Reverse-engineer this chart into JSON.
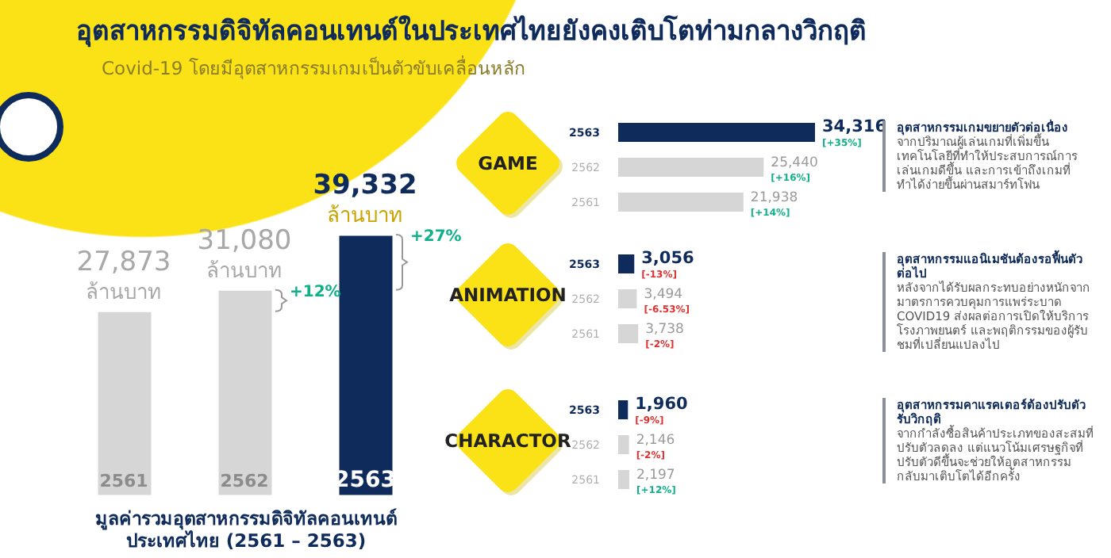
{
  "chart_data": [
    {
      "type": "bar",
      "title": "อุตสาหกรรมดิจิทัลคอนเทนต์ในประเทศไทยยังคงเติบโตท่ามกลางวิกฤติ",
      "subtitle": "Covid-19 โดยมีอุตสาหกรรมเกมเป็นตัวขับเคลื่อนหลัก",
      "xlabel": "มูลค่ารวมอุตสาหกรรมดิจิทัลคอนเทนต์ประเทศไทย (2561 – 2563)",
      "categories": [
        "2561",
        "2562",
        "2563"
      ],
      "tick_labels": "x",
      "series": [
        {
          "colors": [
            "#d6d6d6",
            "#d6d6d6",
            "#0f2b5b"
          ],
          "values": [
            27873,
            31080,
            39332
          ],
          "value_labels": [
            "27,873 ล้านบาท",
            "31,080 ล้านบาท",
            "39,332 ล้านบาท"
          ]
        }
      ],
      "annotations": [
        {
          "text": "+12%",
          "x": "2562",
          "y": 31080
        },
        {
          "text": "+27%",
          "x": "2563",
          "y": 39332
        }
      ]
    },
    {
      "type": "bar",
      "title": "GAME",
      "orientation": "horizontal",
      "categories": [
        "2563",
        "2562",
        "2561"
      ],
      "tick_labels": "y",
      "series": [
        {
          "colors": [
            "#0f2b5b",
            "#d6d6d6",
            "#d6d6d6"
          ],
          "values": [
            34316,
            25440,
            21938
          ],
          "value_labels": [
            "34,316",
            "25,440",
            "21,938"
          ]
        }
      ],
      "annotations": [
        "อุตสาหกรรมเกมขยายตัวต่อเนื่อง",
        "จากปริมาณผู้เล่นเกมที่เพิ่มขึ้น เทคโนโลยีที่ทำให้ประสบการณ์การเล่นเกมดีขึ้น และการเข้าถึงเกมที่ทำได้ง่ายขึ้นผ่านสมาร์ทโฟน",
        {
          "text": "[+35%]",
          "x": 34316,
          "y": "2563"
        },
        {
          "text": "[+16%]",
          "x": 25440,
          "y": "2562"
        },
        {
          "text": "[+14%]",
          "x": 21938,
          "y": "2561"
        }
      ]
    },
    {
      "type": "bar",
      "title": "ANIMATION",
      "orientation": "horizontal",
      "categories": [
        "2563",
        "2562",
        "2561"
      ],
      "tick_labels": "y",
      "series": [
        {
          "colors": [
            "#0f2b5b",
            "#d6d6d6",
            "#d6d6d6"
          ],
          "values": [
            3056,
            3494,
            3738
          ],
          "value_labels": [
            "3,056",
            "3,494",
            "3,738"
          ]
        }
      ],
      "annotations": [
        "อุตสาหกรรมแอนิเมชันต้องรอฟื้นตัวต่อไป",
        "หลังจากได้รับผลกระทบอย่างหนักจากมาตรการควบคุมการแพร่ระบาด COVID19 ส่งผลต่อการเปิดให้บริการโรงภาพยนตร์ และพฤติกรรมของผู้รับชมที่เปลี่ยนแปลงไป",
        {
          "text": "[-13%]",
          "x": 3056,
          "y": "2563"
        },
        {
          "text": "[-6.53%]",
          "x": 3494,
          "y": "2562"
        },
        {
          "text": "[-2%]",
          "x": 3738,
          "y": "2561"
        }
      ]
    },
    {
      "type": "bar",
      "title": "CHARACTOR",
      "orientation": "horizontal",
      "categories": [
        "2563",
        "2562",
        "2561"
      ],
      "tick_labels": "y",
      "series": [
        {
          "colors": [
            "#0f2b5b",
            "#d6d6d6",
            "#d6d6d6"
          ],
          "values": [
            1960,
            2146,
            2197
          ],
          "value_labels": [
            "1,960",
            "2,146",
            "2,197"
          ]
        }
      ],
      "annotations": [
        "อุตสาหกรรมคาแรคเตอร์ต้องปรับตัวรับวิกฤติ",
        "จากกำลังซื้อสินค้าประเภทของสะสมที่ปรับตัวลดลง แต่แนวโน้มเศรษฐกิจที่ปรับตัวดีขึ้นจะช่วยให้อุตสาหกรรมกลับมาเติบโตได้อีกครั้ง",
        {
          "text": "[-9%]",
          "x": 1960,
          "y": "2563"
        },
        {
          "text": "[-2%]",
          "x": 2146,
          "y": "2562"
        },
        {
          "text": "[+12%]",
          "x": 2197,
          "y": "2561"
        }
      ]
    }
  ]
}
